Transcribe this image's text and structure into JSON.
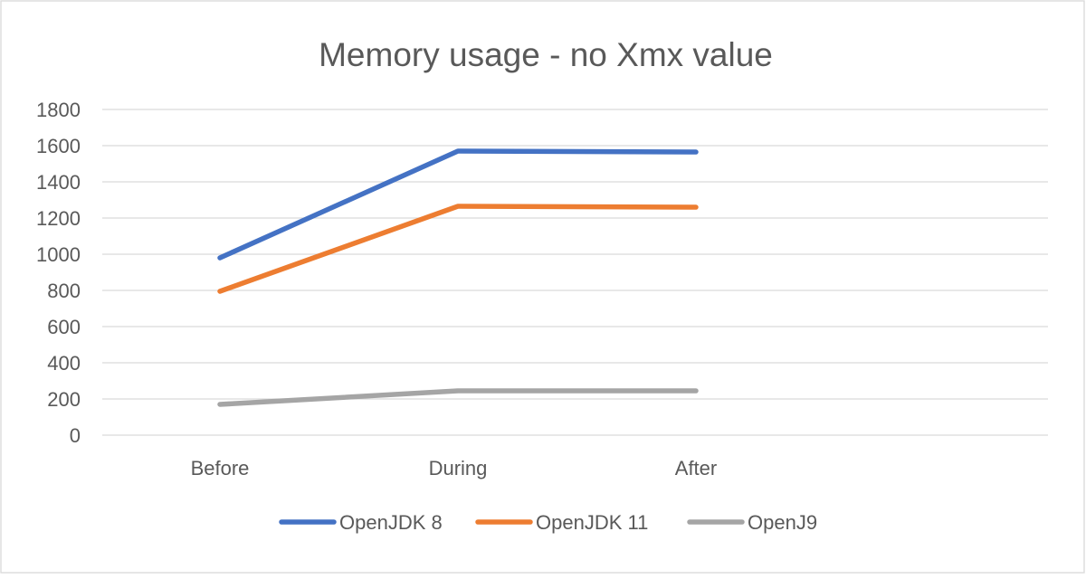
{
  "chart_data": {
    "type": "line",
    "title": "Memory usage - no Xmx value",
    "xlabel": "",
    "ylabel": "",
    "categories": [
      "Before",
      "During",
      "After"
    ],
    "ylim": [
      0,
      1800
    ],
    "yticks": [
      0,
      200,
      400,
      600,
      800,
      1000,
      1200,
      1400,
      1600,
      1800
    ],
    "grid": true,
    "legend_position": "bottom",
    "series": [
      {
        "name": "OpenJDK 8",
        "color": "#4472c4",
        "values": [
          980,
          1570,
          1565
        ]
      },
      {
        "name": "OpenJDK 11",
        "color": "#ed7d31",
        "values": [
          795,
          1265,
          1260
        ]
      },
      {
        "name": "OpenJ9",
        "color": "#a5a5a5",
        "values": [
          170,
          245,
          245
        ]
      }
    ]
  }
}
